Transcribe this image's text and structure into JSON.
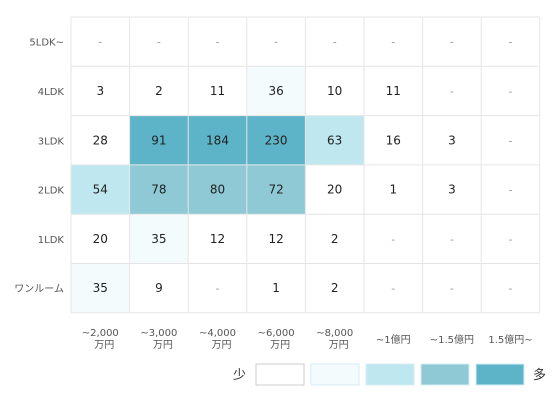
{
  "chart_data": {
    "type": "heatmap",
    "columns": [
      [
        "~2,000",
        "万円"
      ],
      [
        "~3,000",
        "万円"
      ],
      [
        "~4,000",
        "万円"
      ],
      [
        "~6,000",
        "万円"
      ],
      [
        "~8,000",
        "万円"
      ],
      [
        "~1億円"
      ],
      [
        "~1.5億円"
      ],
      [
        "1.5億円~"
      ]
    ],
    "rows": [
      "5LDK~",
      "4LDK",
      "3LDK",
      "2LDK",
      "1LDK",
      "ワンルーム"
    ],
    "values": [
      [
        null,
        null,
        null,
        null,
        null,
        null,
        null,
        null
      ],
      [
        3,
        2,
        11,
        36,
        10,
        11,
        null,
        null
      ],
      [
        28,
        91,
        184,
        230,
        63,
        16,
        3,
        null
      ],
      [
        54,
        78,
        80,
        72,
        20,
        1,
        3,
        null
      ],
      [
        20,
        35,
        12,
        12,
        2,
        null,
        null,
        null
      ],
      [
        35,
        9,
        null,
        1,
        2,
        null,
        null,
        null
      ]
    ],
    "levels": [
      [
        null,
        null,
        null,
        null,
        null,
        null,
        null,
        null
      ],
      [
        0,
        0,
        0,
        1,
        0,
        0,
        null,
        null
      ],
      [
        0,
        4,
        4,
        4,
        2,
        0,
        0,
        null
      ],
      [
        2,
        3,
        3,
        3,
        0,
        0,
        0,
        null
      ],
      [
        0,
        1,
        0,
        0,
        0,
        null,
        null,
        null
      ],
      [
        1,
        0,
        null,
        0,
        0,
        null,
        null,
        null
      ]
    ],
    "empty_symbol": "-",
    "level_colors": [
      "#ffffff",
      "#f3fbfd",
      "#bfe7ef",
      "#8fc9d6",
      "#5db4c8"
    ],
    "legend": {
      "low_label": "少",
      "high_label": "多",
      "swatch_colors": [
        "#ffffff",
        "#f3fbfd",
        "#bfe7ef",
        "#8fc9d6",
        "#5db4c8"
      ]
    }
  }
}
